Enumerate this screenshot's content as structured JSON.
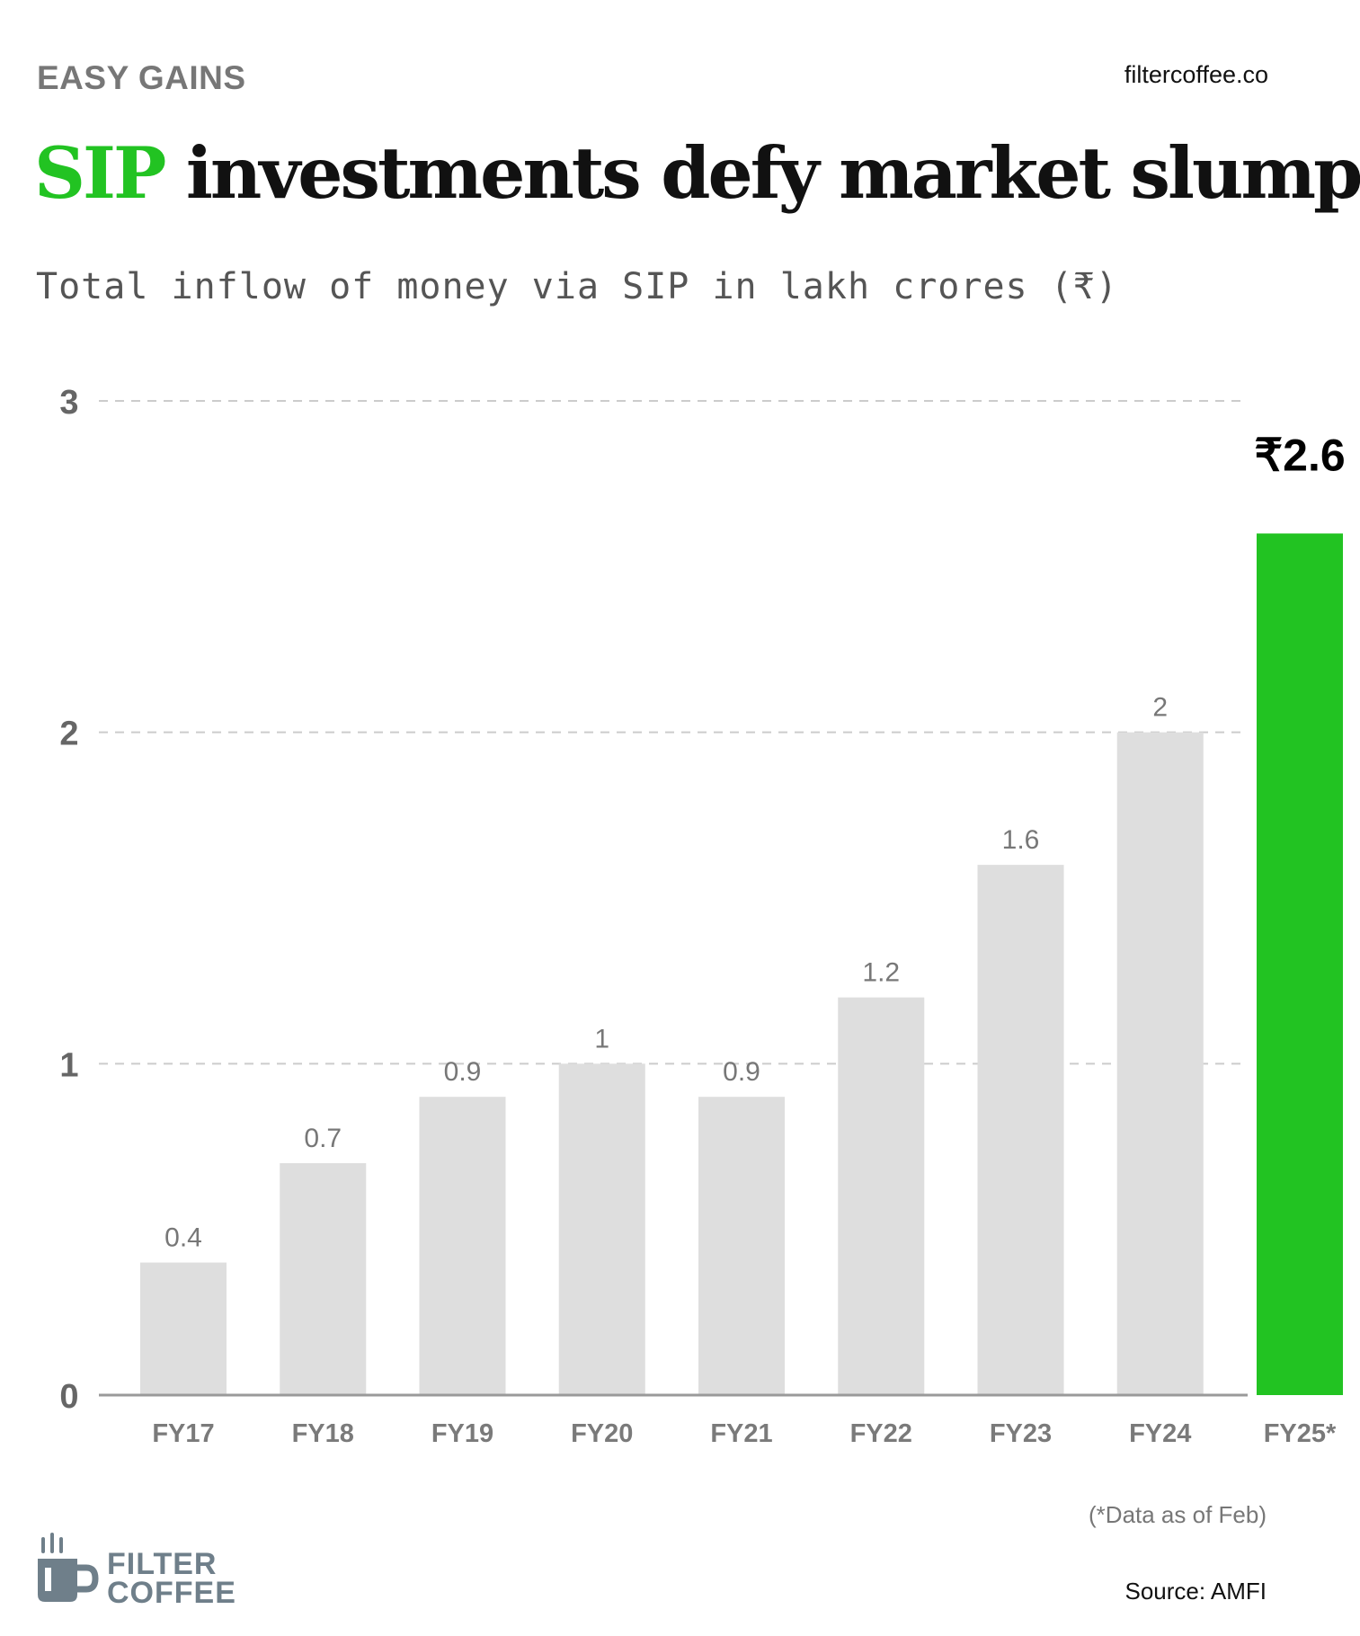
{
  "header": {
    "kicker": "EASY GAINS",
    "site": "filtercoffee.co",
    "title_highlight": "SIP",
    "title_rest": " investments defy market slump",
    "subtitle": "Total inflow of money via SIP in lakh crores (₹)"
  },
  "colors": {
    "accent": "#22c322",
    "bar": "#dedede",
    "axis_text": "#666666",
    "gridline": "#cccccc",
    "title": "#111111",
    "logo": "#6f7f8a"
  },
  "chart_data": {
    "type": "bar",
    "title": "SIP investments defy market slump",
    "subtitle": "Total inflow of money via SIP in lakh crores (₹)",
    "xlabel": "",
    "ylabel": "",
    "categories": [
      "FY17",
      "FY18",
      "FY19",
      "FY20",
      "FY21",
      "FY22",
      "FY23",
      "FY24",
      "FY25*"
    ],
    "values": [
      0.4,
      0.7,
      0.9,
      1,
      0.9,
      1.2,
      1.6,
      2,
      2.6
    ],
    "value_labels": [
      "0.4",
      "0.7",
      "0.9",
      "1",
      "0.9",
      "1.2",
      "1.6",
      "2",
      "₹2.6"
    ],
    "highlight_index": 8,
    "ylim": [
      0,
      3
    ],
    "yticks": [
      0,
      1,
      2,
      3
    ],
    "ytick_labels": [
      "0",
      "1",
      "2",
      "3"
    ],
    "grid": true,
    "legend": "none"
  },
  "footer": {
    "footnote": "(*Data as of Feb)",
    "source": "Source: AMFI",
    "logo_line1": "FILTER",
    "logo_line2": "COFFEE",
    "logo_icon": "coffee-mug-icon"
  }
}
